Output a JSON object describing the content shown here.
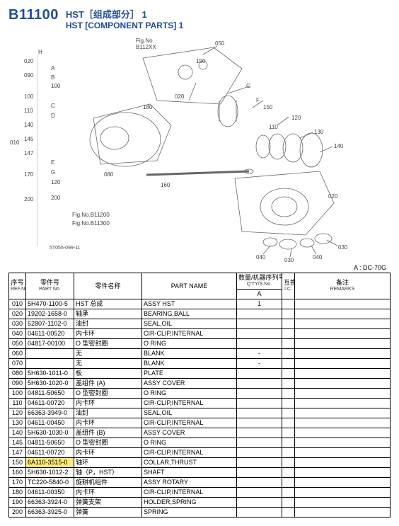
{
  "header": {
    "section_code": "B11100",
    "title_cn": "HST［组成部分］ 1",
    "title_en": "HST [COMPONENT PARTS] 1"
  },
  "diagram": {
    "fig_ref_top": "Fig.No.\nB112XX",
    "fig_ref_bottom1": "Fig.No.B11200",
    "fig_ref_bottom2": "Fig.No.B11300",
    "drawing_code": "5T055-099-11",
    "side_numbers": [
      "020",
      "090",
      "100",
      "110",
      "140",
      "145",
      "147",
      "170",
      "200"
    ],
    "side_letters": [
      "H",
      "A",
      "B",
      "C",
      "D",
      "E",
      "G"
    ],
    "side_labels": [
      "100",
      "110",
      "180",
      "120",
      "200"
    ],
    "callouts": [
      "050",
      "190",
      "020",
      "180",
      "150",
      "080",
      "160",
      "110",
      "120",
      "130",
      "140",
      "020",
      "040",
      "030",
      "040",
      "030",
      "G",
      "F"
    ],
    "root_ref": "010"
  },
  "legend": {
    "text": "A : DC-70G"
  },
  "table": {
    "headers": {
      "ref": {
        "cn": "序号",
        "en": "REF.No."
      },
      "pn": {
        "cn": "零件号",
        "en": "PART No."
      },
      "cn_name": "零件名称",
      "en_name": "PART NAME",
      "qty": {
        "cn": "数量/机器序列号",
        "en": "Q'TY/S.No."
      },
      "qty_sub": "A",
      "ic": {
        "cn": "互换",
        "en": "I.C."
      },
      "remarks": {
        "cn": "备注",
        "en": "REMARKS"
      }
    },
    "rows": [
      {
        "ref": "010",
        "pn": "5H470-1100-5",
        "cn": "HST 总成",
        "en": "ASSY HST",
        "qty": "1",
        "ic": "",
        "rem": ""
      },
      {
        "ref": "020",
        "pn": "19202-1658-0",
        "cn": "轴承",
        "en": "BEARING,BALL",
        "qty": "",
        "ic": "",
        "rem": ""
      },
      {
        "ref": "030",
        "pn": "52807-1102-0",
        "cn": "油封",
        "en": "SEAL,OIL",
        "qty": "",
        "ic": "",
        "rem": ""
      },
      {
        "ref": "040",
        "pn": "04611-00520",
        "cn": "内卡环",
        "en": "CIR-CLIP,INTERNAL",
        "qty": "",
        "ic": "",
        "rem": ""
      },
      {
        "ref": "050",
        "pn": "04817-00100",
        "cn": "O 型密封圈",
        "en": "O RING",
        "qty": "",
        "ic": "",
        "rem": ""
      },
      {
        "ref": "060",
        "pn": "",
        "cn": "无",
        "en": "BLANK",
        "qty": "-",
        "ic": "",
        "rem": ""
      },
      {
        "ref": "070",
        "pn": "",
        "cn": "无",
        "en": "BLANK",
        "qty": "-",
        "ic": "",
        "rem": ""
      },
      {
        "ref": "080",
        "pn": "5H630-1011-0",
        "cn": "板",
        "en": "PLATE",
        "qty": "",
        "ic": "",
        "rem": ""
      },
      {
        "ref": "090",
        "pn": "5H630-1020-0",
        "cn": "盖组件 (A)",
        "en": "ASSY COVER",
        "qty": "",
        "ic": "",
        "rem": ""
      },
      {
        "ref": "100",
        "pn": "04811-50650",
        "cn": "O 型密封圈",
        "en": "O RING",
        "qty": "",
        "ic": "",
        "rem": ""
      },
      {
        "ref": "110",
        "pn": "04611-00720",
        "cn": "内卡环",
        "en": "CIR-CLIP,INTERNAL",
        "qty": "",
        "ic": "",
        "rem": ""
      },
      {
        "ref": "120",
        "pn": "66363-3949-0",
        "cn": "油封",
        "en": "SEAL,OIL",
        "qty": "",
        "ic": "",
        "rem": ""
      },
      {
        "ref": "130",
        "pn": "04611-00450",
        "cn": "内卡环",
        "en": "CIR-CLIP,INTERNAL",
        "qty": "",
        "ic": "",
        "rem": ""
      },
      {
        "ref": "140",
        "pn": "5H630-1030-0",
        "cn": "盖组件 (B)",
        "en": "ASSY COVER",
        "qty": "",
        "ic": "",
        "rem": ""
      },
      {
        "ref": "145",
        "pn": "04811-50650",
        "cn": "O 型密封圈",
        "en": "O RING",
        "qty": "",
        "ic": "",
        "rem": ""
      },
      {
        "ref": "147",
        "pn": "04611-00720",
        "cn": "内卡环",
        "en": "CIR-CLIP,INTERNAL",
        "qty": "",
        "ic": "",
        "rem": ""
      },
      {
        "ref": "150",
        "pn": "6A110-3515-0",
        "cn": "轴环",
        "en": "COLLAR,THRUST",
        "qty": "",
        "ic": "",
        "rem": "",
        "highlight": true
      },
      {
        "ref": "160",
        "pn": "5H630-1012-2",
        "cn": "轴（P，HST）",
        "en": "SHAFT",
        "qty": "",
        "ic": "",
        "rem": ""
      },
      {
        "ref": "170",
        "pn": "TC220-5840-0",
        "cn": "旋耕机组件",
        "en": "ASSY ROTARY",
        "qty": "",
        "ic": "",
        "rem": ""
      },
      {
        "ref": "180",
        "pn": "04611-00350",
        "cn": "内卡环",
        "en": "CIR-CLIP,INTERNAL",
        "qty": "",
        "ic": "",
        "rem": ""
      },
      {
        "ref": "190",
        "pn": "66363-3924-0",
        "cn": "弹簧支架",
        "en": "HOLDER,SPRING",
        "qty": "",
        "ic": "",
        "rem": ""
      },
      {
        "ref": "200",
        "pn": "66363-3925-0",
        "cn": "弹簧",
        "en": "SPRING",
        "qty": "",
        "ic": "",
        "rem": ""
      }
    ]
  }
}
